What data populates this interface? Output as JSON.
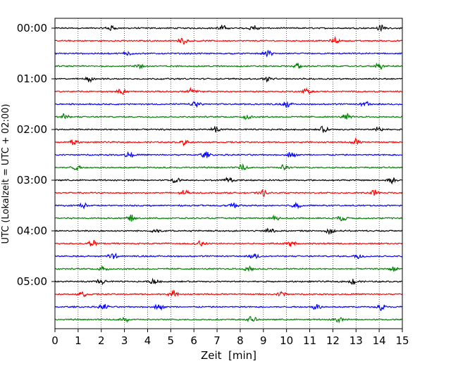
{
  "chart_data": {
    "type": "line",
    "chart_kind": "helicorder seismogram (one trace per 15-minute row)",
    "xlabel": "Zeit  [min]",
    "ylabel": "UTC (Lokalzeit = UTC + 02:00)",
    "xlim": [
      0,
      15
    ],
    "x_ticks": [
      0,
      1,
      2,
      3,
      4,
      5,
      6,
      7,
      8,
      9,
      10,
      11,
      12,
      13,
      14,
      15
    ],
    "x_tick_labels": [
      "0",
      "1",
      "2",
      "3",
      "4",
      "5",
      "6",
      "7",
      "8",
      "9",
      "10",
      "11",
      "12",
      "13",
      "14",
      "15"
    ],
    "y_tick_labels": [
      "00:00",
      "01:00",
      "02:00",
      "03:00",
      "04:00",
      "05:00"
    ],
    "y_tick_rows": [
      0,
      4,
      8,
      12,
      16,
      20
    ],
    "row_count": 24,
    "row_colors": [
      "#000000",
      "#ff0000",
      "#0000ff",
      "#008000"
    ],
    "grid": "vertical dotted lines at each minute",
    "legend": "none",
    "rows": [
      {
        "start": "00:00",
        "color": "#000000",
        "amplitude": 0.35,
        "events_min": [
          2.4,
          7.2,
          8.6,
          14.1
        ]
      },
      {
        "start": "00:15",
        "color": "#ff0000",
        "amplitude": 0.35,
        "events_min": [
          12.1,
          5.5
        ]
      },
      {
        "start": "00:30",
        "color": "#0000ff",
        "amplitude": 0.35,
        "events_min": [
          9.2,
          3.1
        ]
      },
      {
        "start": "00:45",
        "color": "#008000",
        "amplitude": 0.35,
        "events_min": [
          3.6,
          14.0,
          10.5
        ]
      },
      {
        "start": "01:00",
        "color": "#000000",
        "amplitude": 0.35,
        "events_min": [
          1.5,
          9.2
        ]
      },
      {
        "start": "01:15",
        "color": "#ff0000",
        "amplitude": 0.35,
        "events_min": [
          2.9,
          10.9,
          5.9
        ]
      },
      {
        "start": "01:30",
        "color": "#0000ff",
        "amplitude": 0.35,
        "events_min": [
          6.1,
          10.0,
          13.4
        ]
      },
      {
        "start": "01:45",
        "color": "#008000",
        "amplitude": 0.35,
        "events_min": [
          0.4,
          12.6,
          8.3
        ]
      },
      {
        "start": "02:00",
        "color": "#000000",
        "amplitude": 0.35,
        "events_min": [
          6.9,
          11.6,
          14.0
        ]
      },
      {
        "start": "02:15",
        "color": "#ff0000",
        "amplitude": 0.35,
        "events_min": [
          5.6,
          0.8,
          13.0
        ]
      },
      {
        "start": "02:30",
        "color": "#0000ff",
        "amplitude": 0.35,
        "events_min": [
          6.5,
          10.2,
          3.2
        ]
      },
      {
        "start": "02:45",
        "color": "#008000",
        "amplitude": 0.35,
        "events_min": [
          0.9,
          8.1,
          9.9
        ]
      },
      {
        "start": "03:00",
        "color": "#000000",
        "amplitude": 0.35,
        "events_min": [
          5.2,
          7.5,
          14.5
        ]
      },
      {
        "start": "03:15",
        "color": "#ff0000",
        "amplitude": 0.35,
        "events_min": [
          5.6,
          9.0,
          13.8
        ]
      },
      {
        "start": "03:30",
        "color": "#0000ff",
        "amplitude": 0.35,
        "events_min": [
          10.4,
          1.2,
          7.7
        ]
      },
      {
        "start": "03:45",
        "color": "#008000",
        "amplitude": 0.35,
        "events_min": [
          3.3,
          9.5,
          12.4
        ]
      },
      {
        "start": "04:00",
        "color": "#000000",
        "amplitude": 0.35,
        "events_min": [
          9.3,
          4.4,
          11.9
        ]
      },
      {
        "start": "04:15",
        "color": "#ff0000",
        "amplitude": 0.35,
        "events_min": [
          1.6,
          10.2,
          6.3
        ]
      },
      {
        "start": "04:30",
        "color": "#0000ff",
        "amplitude": 0.35,
        "events_min": [
          8.6,
          2.5,
          13.1
        ]
      },
      {
        "start": "04:45",
        "color": "#008000",
        "amplitude": 0.35,
        "events_min": [
          2.1,
          8.4,
          14.6
        ]
      },
      {
        "start": "05:00",
        "color": "#000000",
        "amplitude": 0.35,
        "events_min": [
          2.0,
          4.3,
          12.9
        ]
      },
      {
        "start": "05:15",
        "color": "#ff0000",
        "amplitude": 0.35,
        "events_min": [
          9.8,
          5.1,
          1.2
        ]
      },
      {
        "start": "05:30",
        "color": "#0000ff",
        "amplitude": 0.35,
        "events_min": [
          2.1,
          4.5,
          11.3,
          14.1
        ]
      },
      {
        "start": "05:45",
        "color": "#008000",
        "amplitude": 0.35,
        "events_min": [
          3.0,
          8.5,
          12.2
        ]
      }
    ]
  }
}
